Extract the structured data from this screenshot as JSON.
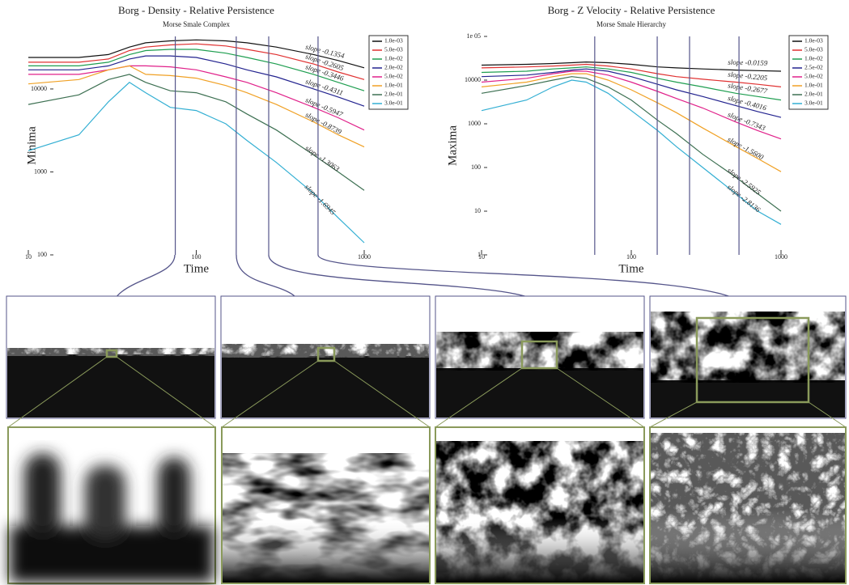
{
  "chart_data": [
    {
      "type": "line",
      "title": "Borg - Density - Relative Persistence",
      "subtitle": "Morse Smale Complex",
      "xlabel": "Time",
      "ylabel": "Minima",
      "xscale": "log",
      "yscale": "log",
      "legend": "right",
      "xlim": [
        10,
        1000
      ],
      "ylim": [
        100,
        43000
      ],
      "xticks": [
        10,
        100,
        1000
      ],
      "yticks": [
        100,
        1000,
        10000
      ],
      "vlines": [
        75,
        173,
        270,
        531
      ],
      "x": [
        10,
        20,
        30,
        40,
        50,
        70,
        100,
        150,
        200,
        300,
        500,
        700,
        1000
      ],
      "series": [
        {
          "name": "1.0e-03",
          "color": "#111111",
          "slope_label": "slope -0.1354",
          "values": [
            24000,
            24000,
            26000,
            32000,
            36000,
            38000,
            39000,
            38000,
            36000,
            32000,
            26000,
            22000,
            18000
          ]
        },
        {
          "name": "5.0e-03",
          "color": "#e03131",
          "slope_label": "slope -0.2605",
          "values": [
            21000,
            21000,
            23000,
            29000,
            32000,
            34000,
            35000,
            33000,
            30000,
            26000,
            20000,
            16000,
            13000
          ]
        },
        {
          "name": "1.0e-02",
          "color": "#1f9e50",
          "slope_label": "slope -0.3446",
          "values": [
            19000,
            19000,
            21000,
            26000,
            29000,
            30000,
            30000,
            27000,
            24000,
            20000,
            15000,
            12000,
            9500
          ]
        },
        {
          "name": "2.0e-02",
          "color": "#23238f",
          "slope_label": "slope -0.4311",
          "values": [
            17000,
            17000,
            19000,
            23000,
            25000,
            25000,
            24000,
            20000,
            17000,
            14000,
            10000,
            8000,
            6200
          ]
        },
        {
          "name": "5.0e-02",
          "color": "#e0218a",
          "slope_label": "slope -0.5947",
          "values": [
            15000,
            15000,
            17000,
            19000,
            19000,
            18500,
            17000,
            14000,
            12000,
            9000,
            6000,
            4500,
            3200
          ]
        },
        {
          "name": "1.0e-01",
          "color": "#f0a125",
          "slope_label": "slope -0.8739",
          "values": [
            11500,
            13000,
            17000,
            19000,
            15000,
            14500,
            13500,
            11000,
            9000,
            6500,
            4000,
            2800,
            2000
          ]
        },
        {
          "name": "2.0e-01",
          "color": "#3d7052",
          "slope_label": "slope -1.3063",
          "values": [
            6500,
            8500,
            13000,
            15000,
            12000,
            9500,
            9000,
            7000,
            5000,
            3200,
            1600,
            1000,
            600
          ]
        },
        {
          "name": "3.0e-01",
          "color": "#33afd3",
          "slope_label": "slope -1.6945",
          "values": [
            1800,
            2800,
            7000,
            12000,
            9000,
            6000,
            5500,
            3800,
            2400,
            1300,
            550,
            280,
            140
          ]
        }
      ]
    },
    {
      "type": "line",
      "title": "Borg - Z Velocity - Relative Persistence",
      "subtitle": "Morse Smale Hierarchy",
      "xlabel": "Time",
      "ylabel": "Maxima",
      "xscale": "log",
      "yscale": "log",
      "legend": "right",
      "xlim": [
        10,
        1000
      ],
      "ylim": [
        1,
        100000
      ],
      "xticks": [
        10,
        100,
        1000
      ],
      "yticks": [
        1,
        10,
        100,
        1000,
        10000,
        {
          "value": 100000,
          "label": "1e 05"
        }
      ],
      "vlines": [
        57,
        149,
        245,
        524
      ],
      "x": [
        10,
        20,
        30,
        40,
        50,
        70,
        100,
        150,
        200,
        300,
        500,
        700,
        1000
      ],
      "series": [
        {
          "name": "1.0e-03",
          "color": "#111111",
          "slope_label": "slope -0.0159",
          "values": [
            22000,
            23000,
            24000,
            25000,
            26000,
            25000,
            23000,
            20000,
            19000,
            18000,
            17000,
            16500,
            16000
          ]
        },
        {
          "name": "5.0e-03",
          "color": "#e03131",
          "slope_label": "slope -0.2205",
          "values": [
            19000,
            20000,
            21000,
            22000,
            23000,
            21000,
            18000,
            14000,
            12000,
            10500,
            9000,
            8000,
            7000
          ]
        },
        {
          "name": "1.0e-02",
          "color": "#1f9e50",
          "slope_label": "slope -0.2677",
          "values": [
            15000,
            16000,
            18000,
            19000,
            20000,
            18000,
            15000,
            11000,
            9000,
            7000,
            5000,
            4200,
            3500
          ]
        },
        {
          "name": "2.5e-02",
          "color": "#23238f",
          "slope_label": "slope -0.4016",
          "values": [
            12000,
            13000,
            15000,
            17000,
            18000,
            16000,
            12000,
            8000,
            6000,
            4200,
            2600,
            1900,
            1400
          ]
        },
        {
          "name": "5.0e-02",
          "color": "#e0218a",
          "slope_label": "slope -0.7343",
          "values": [
            9000,
            11000,
            14000,
            16000,
            16000,
            13000,
            9000,
            5500,
            3800,
            2300,
            1100,
            700,
            450
          ]
        },
        {
          "name": "1.0e-01",
          "color": "#f0a125",
          "slope_label": "slope -1.5600",
          "values": [
            7000,
            9000,
            12000,
            14000,
            14000,
            10000,
            6000,
            3000,
            1800,
            800,
            300,
            160,
            80
          ]
        },
        {
          "name": "2.0e-01",
          "color": "#3d7052",
          "slope_label": "slope -2.5925",
          "values": [
            5000,
            7500,
            10000,
            12000,
            11000,
            7000,
            3500,
            1200,
            600,
            200,
            60,
            25,
            10
          ]
        },
        {
          "name": "3.0e-01",
          "color": "#33afd3",
          "slope_label": "slope -2.8136",
          "values": [
            2000,
            3500,
            7000,
            10000,
            9000,
            5000,
            2000,
            700,
            300,
            100,
            25,
            10,
            5
          ]
        }
      ]
    }
  ]
}
